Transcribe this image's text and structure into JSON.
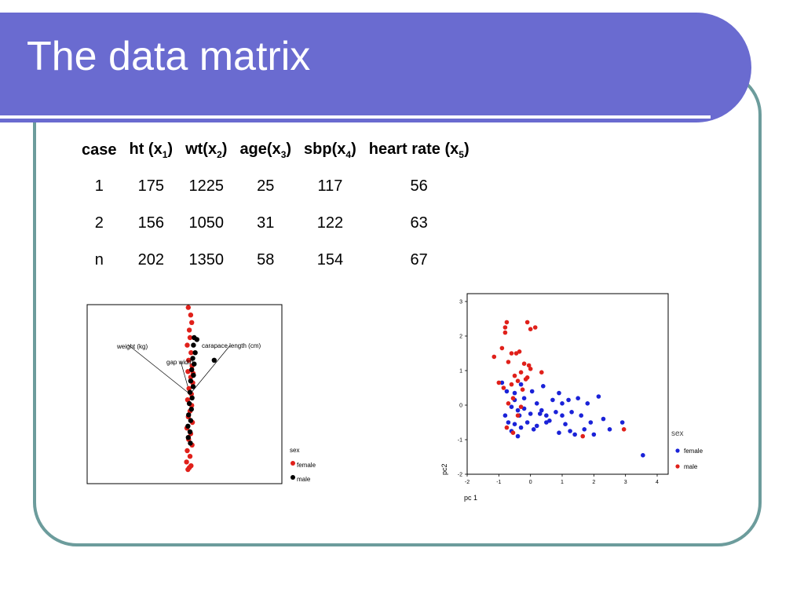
{
  "slide": {
    "title": "The data matrix"
  },
  "table": {
    "headers": [
      {
        "label": "case",
        "sub": "",
        "suffix": ""
      },
      {
        "label": "ht (x",
        "sub": "1",
        "suffix": ")"
      },
      {
        "label": "wt(x",
        "sub": "2",
        "suffix": ")"
      },
      {
        "label": "age(x",
        "sub": "3",
        "suffix": ")"
      },
      {
        "label": "sbp(x",
        "sub": "4",
        "suffix": ")"
      },
      {
        "label": "heart rate (x",
        "sub": "5",
        "suffix": ")"
      }
    ],
    "rows": [
      [
        "1",
        "175",
        "1225",
        "25",
        "117",
        "56"
      ],
      [
        "2",
        "156",
        "1050",
        "31",
        "122",
        "63"
      ],
      [
        "n",
        "202",
        "1350",
        "58",
        "154",
        "67"
      ]
    ]
  },
  "chart_data": [
    {
      "type": "scatter",
      "title": "",
      "annotations": [
        "weight (kg)",
        "gap width",
        "carapace length (cm)"
      ],
      "legend": {
        "title": "sex",
        "entries": [
          {
            "label": "female",
            "color": "#e0201a"
          },
          {
            "label": "male",
            "color": "#000000"
          }
        ],
        "placement": "right"
      },
      "series": [
        {
          "name": "female",
          "color": "#e0201a",
          "points": [
            [
              -0.05,
              2.3
            ],
            [
              0.02,
              2.1
            ],
            [
              0.05,
              1.9
            ],
            [
              -0.02,
              1.7
            ],
            [
              0.0,
              1.5
            ],
            [
              -0.08,
              1.3
            ],
            [
              0.03,
              1.1
            ],
            [
              -0.04,
              0.9
            ],
            [
              0.06,
              0.75
            ],
            [
              -0.06,
              0.6
            ],
            [
              0.02,
              0.45
            ],
            [
              0.08,
              0.3
            ],
            [
              -0.03,
              0.15
            ],
            [
              0.04,
              0.0
            ],
            [
              -0.07,
              -0.15
            ],
            [
              0.05,
              -0.3
            ],
            [
              0.0,
              -0.45
            ],
            [
              -0.05,
              -0.6
            ],
            [
              0.07,
              -0.75
            ],
            [
              -0.09,
              -0.9
            ],
            [
              0.02,
              -1.05
            ],
            [
              -0.04,
              -1.2
            ],
            [
              0.06,
              -1.35
            ],
            [
              -0.08,
              -1.5
            ],
            [
              0.0,
              -1.65
            ],
            [
              -0.1,
              -1.8
            ],
            [
              0.03,
              -1.9
            ],
            [
              -0.06,
              -2.0
            ],
            [
              0.09,
              0.55
            ],
            [
              -0.02,
              -1.95
            ]
          ]
        },
        {
          "name": "male",
          "color": "#000000",
          "points": [
            [
              0.12,
              1.5
            ],
            [
              0.2,
              1.45
            ],
            [
              0.1,
              1.3
            ],
            [
              0.15,
              1.1
            ],
            [
              0.08,
              0.95
            ],
            [
              0.12,
              0.8
            ],
            [
              0.05,
              0.65
            ],
            [
              0.1,
              0.5
            ],
            [
              0.02,
              0.35
            ],
            [
              0.09,
              0.2
            ],
            [
              0.0,
              0.05
            ],
            [
              0.06,
              -0.1
            ],
            [
              -0.02,
              -0.25
            ],
            [
              0.04,
              -0.4
            ],
            [
              -0.04,
              -0.55
            ],
            [
              0.02,
              -0.7
            ],
            [
              -0.06,
              -0.85
            ],
            [
              0.0,
              -1.0
            ],
            [
              -0.05,
              -1.15
            ],
            [
              0.01,
              -1.3
            ],
            [
              0.7,
              0.9
            ]
          ]
        }
      ]
    },
    {
      "type": "scatter",
      "xlabel": "pc 1",
      "ylabel": "pc2",
      "xlim": [
        -2,
        4
      ],
      "ylim": [
        -2,
        3
      ],
      "xticks": [
        "-2",
        "-1",
        "0",
        "1",
        "2",
        "3",
        "4"
      ],
      "yticks": [
        "-2",
        "-1",
        "0",
        "1",
        "2",
        "3"
      ],
      "legend": {
        "title": "sex",
        "entries": [
          {
            "label": "female",
            "color": "#1a22d8"
          },
          {
            "label": "male",
            "color": "#e0201a"
          }
        ],
        "placement": "right"
      },
      "series": [
        {
          "name": "female",
          "color": "#1a22d8",
          "points": [
            [
              -0.9,
              0.65
            ],
            [
              -0.75,
              0.4
            ],
            [
              -0.5,
              0.35
            ],
            [
              -0.3,
              0.6
            ],
            [
              0.05,
              0.4
            ],
            [
              0.4,
              0.55
            ],
            [
              0.9,
              0.35
            ],
            [
              1.2,
              0.15
            ],
            [
              1.5,
              0.2
            ],
            [
              1.8,
              0.05
            ],
            [
              2.15,
              0.25
            ],
            [
              -0.6,
              -0.05
            ],
            [
              -0.4,
              -0.15
            ],
            [
              -0.2,
              -0.1
            ],
            [
              0.0,
              -0.25
            ],
            [
              0.3,
              -0.25
            ],
            [
              0.5,
              -0.3
            ],
            [
              0.8,
              -0.2
            ],
            [
              1.0,
              -0.3
            ],
            [
              1.3,
              -0.2
            ],
            [
              1.6,
              -0.3
            ],
            [
              1.9,
              -0.5
            ],
            [
              2.3,
              -0.4
            ],
            [
              2.9,
              -0.5
            ],
            [
              -0.7,
              -0.5
            ],
            [
              -0.5,
              -0.55
            ],
            [
              -0.3,
              -0.65
            ],
            [
              -0.1,
              -0.5
            ],
            [
              0.2,
              -0.6
            ],
            [
              0.5,
              -0.5
            ],
            [
              0.9,
              -0.8
            ],
            [
              1.1,
              -0.55
            ],
            [
              1.4,
              -0.85
            ],
            [
              1.7,
              -0.7
            ],
            [
              2.0,
              -0.85
            ],
            [
              2.5,
              -0.7
            ],
            [
              -0.6,
              -0.75
            ],
            [
              -0.4,
              -0.9
            ],
            [
              0.1,
              -0.7
            ],
            [
              0.6,
              -0.45
            ],
            [
              -0.2,
              0.2
            ],
            [
              0.2,
              0.05
            ],
            [
              0.7,
              0.15
            ],
            [
              1.0,
              0.05
            ],
            [
              -0.8,
              -0.3
            ],
            [
              3.55,
              -1.45
            ],
            [
              -0.35,
              -0.3
            ],
            [
              0.35,
              -0.15
            ],
            [
              -0.5,
              0.15
            ],
            [
              1.25,
              -0.75
            ]
          ]
        },
        {
          "name": "male",
          "color": "#e0201a",
          "points": [
            [
              -0.8,
              2.25
            ],
            [
              -0.8,
              2.1
            ],
            [
              -0.75,
              2.4
            ],
            [
              -0.1,
              2.4
            ],
            [
              0.0,
              2.2
            ],
            [
              0.15,
              2.25
            ],
            [
              -0.9,
              1.65
            ],
            [
              -0.6,
              1.5
            ],
            [
              -0.45,
              1.5
            ],
            [
              -0.35,
              1.55
            ],
            [
              -1.15,
              1.4
            ],
            [
              -0.7,
              1.25
            ],
            [
              -0.2,
              1.2
            ],
            [
              -0.05,
              1.15
            ],
            [
              0.0,
              1.05
            ],
            [
              -0.3,
              0.95
            ],
            [
              -0.5,
              0.85
            ],
            [
              0.35,
              0.95
            ],
            [
              -0.6,
              0.6
            ],
            [
              -0.4,
              0.7
            ],
            [
              -0.15,
              0.75
            ],
            [
              -1.0,
              0.65
            ],
            [
              -0.85,
              0.5
            ],
            [
              -0.55,
              0.2
            ],
            [
              -0.7,
              0.05
            ],
            [
              -0.3,
              -0.05
            ],
            [
              -0.4,
              -0.3
            ],
            [
              -0.75,
              -0.65
            ],
            [
              -0.55,
              -0.8
            ],
            [
              1.65,
              -0.9
            ],
            [
              2.95,
              -0.7
            ],
            [
              -0.1,
              0.8
            ],
            [
              -0.25,
              0.45
            ]
          ]
        }
      ]
    }
  ]
}
